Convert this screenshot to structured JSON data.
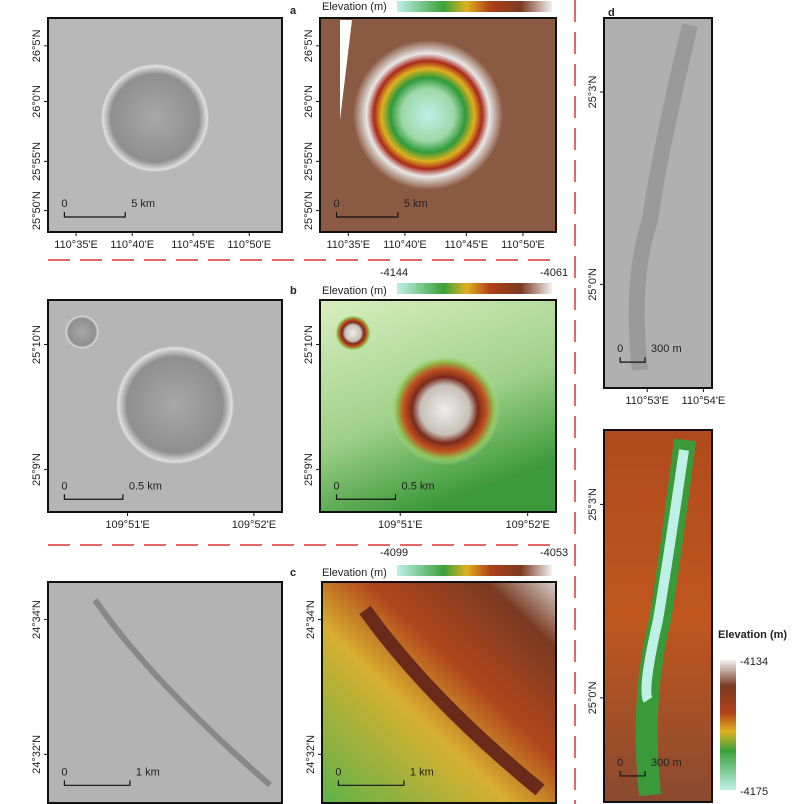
{
  "panels": [
    {
      "label": "a",
      "colorbar": {
        "title": "Elevation (m)",
        "min": "-4144",
        "max": "-4061"
      },
      "lat_ticks": [
        "26°5'N",
        "26°0'N",
        "25°55'N",
        "25°50'N"
      ],
      "lon_ticks": [
        "110°35'E",
        "110°40'E",
        "110°45'E",
        "110°50'E"
      ],
      "scale": [
        "0",
        "5 km"
      ]
    },
    {
      "label": "b",
      "colorbar": {
        "title": "Elevation (m)",
        "min": "-4099",
        "max": "-4053"
      },
      "lat_ticks": [
        "25°10'N",
        "25°9'N"
      ],
      "lon_ticks": [
        "109°51'E",
        "109°52'E"
      ],
      "scale": [
        "0",
        "0.5 km"
      ]
    },
    {
      "label": "c",
      "colorbar": {
        "title": "Elevation (m)"
      },
      "lat_ticks": [
        "24°34'N",
        "24°32'N"
      ],
      "scale": [
        "0",
        "1 km"
      ]
    },
    {
      "label": "d",
      "colorbar": {
        "title": "Elevation (m)",
        "max": "-4134",
        "min": "-4175"
      },
      "lat_ticks": [
        "25°3'N",
        "25°0'N"
      ],
      "lon_ticks": [
        "110°53'E",
        "110°54'E"
      ],
      "scale": [
        "0",
        "300 m"
      ]
    }
  ]
}
